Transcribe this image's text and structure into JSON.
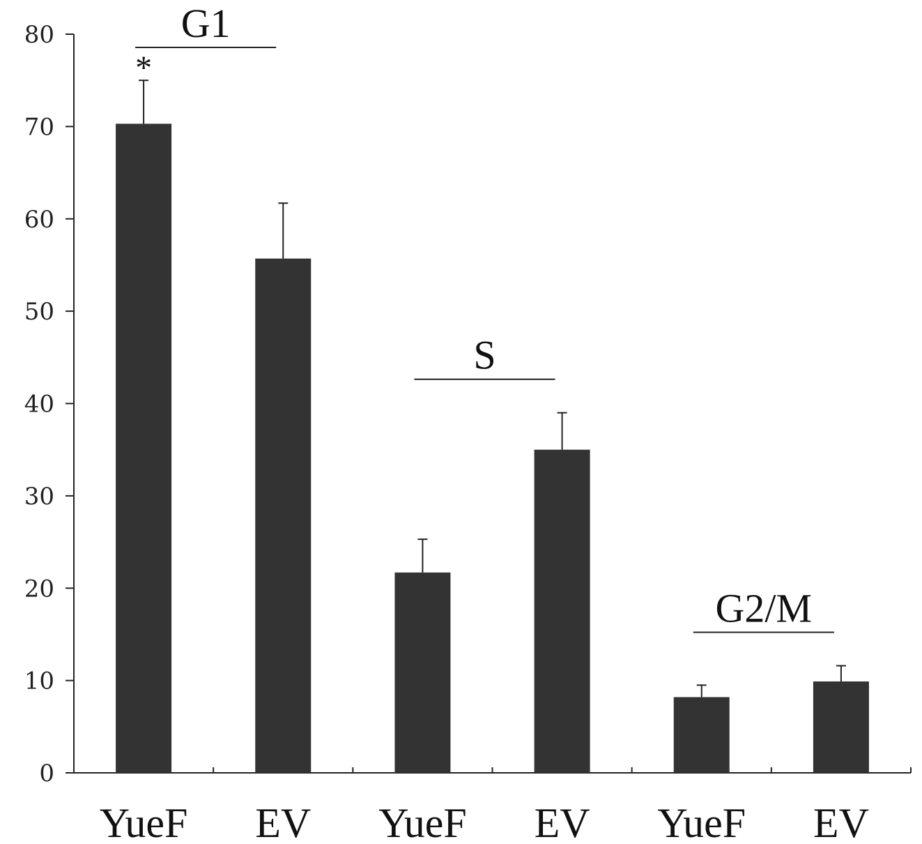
{
  "chart_data": {
    "type": "bar",
    "title": "",
    "xlabel": "",
    "ylabel": "",
    "ylim": [
      0,
      80
    ],
    "yticks": [
      0,
      10,
      20,
      30,
      40,
      50,
      60,
      70,
      80
    ],
    "grid": false,
    "categories": [
      "YueF",
      "EV",
      "YueF",
      "EV",
      "YueF",
      "EV"
    ],
    "values": [
      70.3,
      55.7,
      21.7,
      35.0,
      8.2,
      9.9
    ],
    "errors": [
      4.7,
      6.0,
      3.6,
      4.0,
      1.3,
      1.7
    ],
    "bar_color": "#333333",
    "groups": [
      {
        "label": "G1",
        "bars": [
          0,
          1
        ]
      },
      {
        "label": "S",
        "bars": [
          2,
          3
        ]
      },
      {
        "label": "G2/M",
        "bars": [
          4,
          5
        ]
      }
    ],
    "annotations": [
      {
        "text": "*",
        "bar": 0
      }
    ]
  }
}
